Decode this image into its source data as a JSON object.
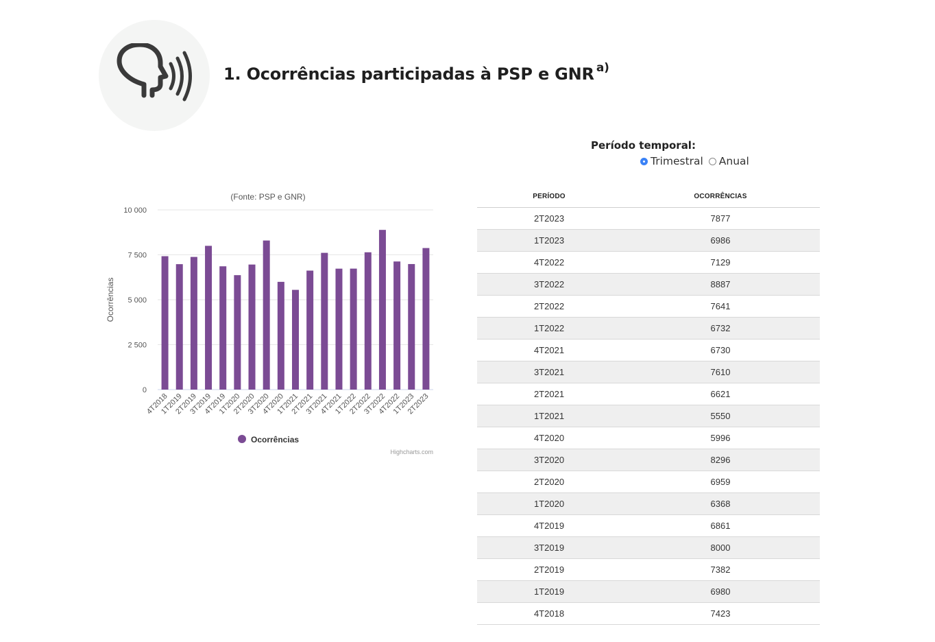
{
  "header": {
    "title": "1. Ocorrências participadas à PSP e GNR",
    "title_note": "a)",
    "icon": "speaking-head-icon"
  },
  "period_selector": {
    "label": "Período temporal:",
    "options": [
      {
        "label": "Trimestral",
        "checked": true
      },
      {
        "label": "Anual",
        "checked": false
      }
    ]
  },
  "chart_data": {
    "type": "bar",
    "subtitle": "(Fonte: PSP e GNR)",
    "ylabel": "Ocorrências",
    "xlabel": "",
    "ylim": [
      0,
      10000
    ],
    "yticks": [
      0,
      2500,
      5000,
      7500,
      10000
    ],
    "ytick_labels": [
      "0",
      "2 500",
      "5 000",
      "7 500",
      "10 000"
    ],
    "categories": [
      "4T2018",
      "1T2019",
      "2T2019",
      "3T2019",
      "4T2019",
      "1T2020",
      "2T2020",
      "3T2020",
      "4T2020",
      "1T2021",
      "2T2021",
      "3T2021",
      "4T2021",
      "1T2022",
      "2T2022",
      "3T2022",
      "4T2022",
      "1T2023",
      "2T2023"
    ],
    "series": [
      {
        "name": "Ocorrências",
        "color": "#7b4b94",
        "values": [
          7423,
          6980,
          7382,
          8000,
          6861,
          6368,
          6959,
          8296,
          5996,
          5550,
          6621,
          7610,
          6730,
          6732,
          7641,
          8887,
          7129,
          6986,
          7877
        ]
      }
    ],
    "legend": "bottom-center",
    "grid": true,
    "credits": "Highcharts.com"
  },
  "table": {
    "headers": [
      "PERÍODO",
      "OCORRÊNCIAS"
    ],
    "rows": [
      [
        "2T2023",
        "7877"
      ],
      [
        "1T2023",
        "6986"
      ],
      [
        "4T2022",
        "7129"
      ],
      [
        "3T2022",
        "8887"
      ],
      [
        "2T2022",
        "7641"
      ],
      [
        "1T2022",
        "6732"
      ],
      [
        "4T2021",
        "6730"
      ],
      [
        "3T2021",
        "7610"
      ],
      [
        "2T2021",
        "6621"
      ],
      [
        "1T2021",
        "5550"
      ],
      [
        "4T2020",
        "5996"
      ],
      [
        "3T2020",
        "8296"
      ],
      [
        "2T2020",
        "6959"
      ],
      [
        "1T2020",
        "6368"
      ],
      [
        "4T2019",
        "6861"
      ],
      [
        "3T2019",
        "8000"
      ],
      [
        "2T2019",
        "7382"
      ],
      [
        "1T2019",
        "6980"
      ],
      [
        "4T2018",
        "7423"
      ]
    ]
  }
}
